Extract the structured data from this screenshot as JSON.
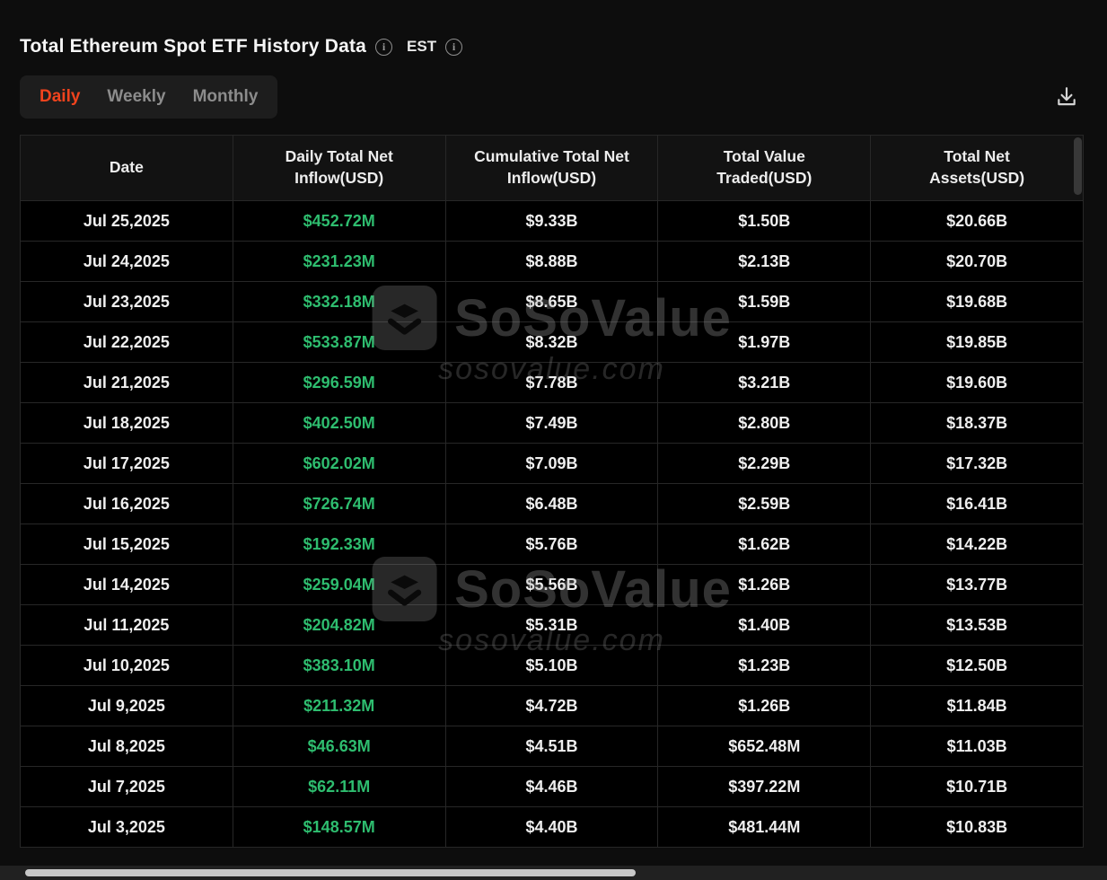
{
  "header": {
    "title": "Total Ethereum Spot ETF History Data",
    "timezone_label": "EST"
  },
  "tabs": {
    "daily": "Daily",
    "weekly": "Weekly",
    "monthly": "Monthly"
  },
  "table": {
    "columns": [
      "Date",
      "Daily Total Net\nInflow(USD)",
      "Cumulative Total Net\nInflow(USD)",
      "Total Value\nTraded(USD)",
      "Total Net\nAssets(USD)"
    ],
    "rows": [
      [
        "Jul 25,2025",
        "$452.72M",
        "$9.33B",
        "$1.50B",
        "$20.66B"
      ],
      [
        "Jul 24,2025",
        "$231.23M",
        "$8.88B",
        "$2.13B",
        "$20.70B"
      ],
      [
        "Jul 23,2025",
        "$332.18M",
        "$8.65B",
        "$1.59B",
        "$19.68B"
      ],
      [
        "Jul 22,2025",
        "$533.87M",
        "$8.32B",
        "$1.97B",
        "$19.85B"
      ],
      [
        "Jul 21,2025",
        "$296.59M",
        "$7.78B",
        "$3.21B",
        "$19.60B"
      ],
      [
        "Jul 18,2025",
        "$402.50M",
        "$7.49B",
        "$2.80B",
        "$18.37B"
      ],
      [
        "Jul 17,2025",
        "$602.02M",
        "$7.09B",
        "$2.29B",
        "$17.32B"
      ],
      [
        "Jul 16,2025",
        "$726.74M",
        "$6.48B",
        "$2.59B",
        "$16.41B"
      ],
      [
        "Jul 15,2025",
        "$192.33M",
        "$5.76B",
        "$1.62B",
        "$14.22B"
      ],
      [
        "Jul 14,2025",
        "$259.04M",
        "$5.56B",
        "$1.26B",
        "$13.77B"
      ],
      [
        "Jul 11,2025",
        "$204.82M",
        "$5.31B",
        "$1.40B",
        "$13.53B"
      ],
      [
        "Jul 10,2025",
        "$383.10M",
        "$5.10B",
        "$1.23B",
        "$12.50B"
      ],
      [
        "Jul 9,2025",
        "$211.32M",
        "$4.72B",
        "$1.26B",
        "$11.84B"
      ],
      [
        "Jul 8,2025",
        "$46.63M",
        "$4.51B",
        "$652.48M",
        "$11.03B"
      ],
      [
        "Jul 7,2025",
        "$62.11M",
        "$4.46B",
        "$397.22M",
        "$10.71B"
      ],
      [
        "Jul 3,2025",
        "$148.57M",
        "$4.40B",
        "$481.44M",
        "$10.83B"
      ]
    ]
  },
  "watermark": {
    "brand": "SoSoValue",
    "domain": "sosovalue.com"
  },
  "colors": {
    "positive_inflow": "#2ebd6f",
    "active_tab": "#f0431d"
  }
}
